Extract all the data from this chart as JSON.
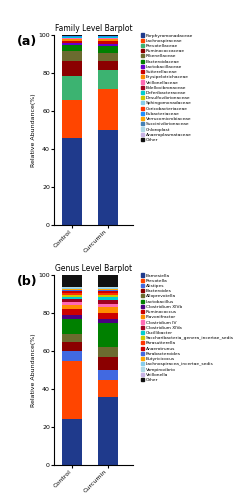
{
  "family": {
    "title": "Family Level Barplot",
    "categories": [
      "Control",
      "Curcumin"
    ],
    "ylabel": "Relative Abundance(%)",
    "legend_labels": [
      "Porphyromonadaceae",
      "Lachnospiraceae",
      "Prevotellaceae",
      "Ruminococcaceae",
      "Rikenellaceae",
      "Bacteroidaceae",
      "Lactobacillaceae",
      "Sutterellaceae",
      "Erysipelotrichaceae",
      "Veillonellaceae",
      "Bdellovibronaceae",
      "Deferibacteraceae",
      "Desulfovibrionaceae",
      "Sphingomonadaceae",
      "Coricobacteriaceae",
      "Eubacteriaceae",
      "Verrucomicrobiaceae",
      "Succinivibrionaceae",
      "Chloroplast",
      "Anaeroplasmataceae",
      "Other"
    ],
    "colors": [
      "#1F3A8C",
      "#FF4500",
      "#3CB371",
      "#8B0000",
      "#6B6B2F",
      "#008000",
      "#6600CC",
      "#CC0000",
      "#FF8C00",
      "#FF69B4",
      "#A00020",
      "#00CED1",
      "#CCCC00",
      "#87CEEB",
      "#FF3300",
      "#1E90FF",
      "#FFA500",
      "#4682B4",
      "#B0D8E6",
      "#C8B4E6",
      "#111111"
    ],
    "control_values": [
      46,
      20,
      13,
      8,
      5,
      3,
      1.5,
      1.0,
      0.8,
      0.5,
      0.3,
      0.2,
      0.2,
      0.1,
      0.1,
      0.1,
      0.1,
      0.05,
      0.05,
      0.05,
      0.5
    ],
    "curcumin_values": [
      50,
      21,
      10,
      5,
      4,
      4,
      1.0,
      1.5,
      0.8,
      0.5,
      0.4,
      0.2,
      0.1,
      0.1,
      0.1,
      0.1,
      0.1,
      0.05,
      0.05,
      0.05,
      0.5
    ]
  },
  "genus": {
    "title": "Genus Level Barplot",
    "categories": [
      "Control",
      "Curcumin"
    ],
    "ylabel": "Relative Abundance(%)",
    "legend_labels": [
      "Barnesiella",
      "Prevotella",
      "Alistipes",
      "Bacteroides",
      "Alloprevotella",
      "Lactobacillus",
      "Clostridium XIVb",
      "Ruminococcus",
      "Flavonifractor",
      "Clostridium IV",
      "Clostridium XIVa",
      "Oscillibacter",
      "Saccharibacteria_genera_incertae_sedis",
      "Parasutterella",
      "Anaerotrunus",
      "Parabacteroides",
      "Butyricicocus",
      "Lachnospiracea_incertae_sedis",
      "Vampirovibrio",
      "Veillonella",
      "Other"
    ],
    "colors": [
      "#1F3A8C",
      "#FF4500",
      "#4169E1",
      "#8B0000",
      "#6B6B2F",
      "#008000",
      "#4B0082",
      "#CC0000",
      "#FF8C00",
      "#FF69B4",
      "#A00020",
      "#00CED1",
      "#CCCC00",
      "#FF3300",
      "#CC0000",
      "#4169E1",
      "#FFA500",
      "#87CEEB",
      "#B0D8E6",
      "#C8B4E6",
      "#111111"
    ],
    "control_values": [
      24,
      31,
      5,
      5,
      4,
      8,
      2,
      3,
      2,
      2,
      1.5,
      1,
      1,
      1,
      1,
      0.8,
      0.5,
      0.5,
      0.3,
      0.2,
      6.2
    ],
    "curcumin_values": [
      36,
      9,
      5,
      7,
      5,
      13,
      2,
      3,
      3,
      2,
      2,
      1.5,
      1,
      1,
      1,
      0.8,
      0.5,
      0.5,
      0.3,
      0.2,
      6.2
    ]
  }
}
